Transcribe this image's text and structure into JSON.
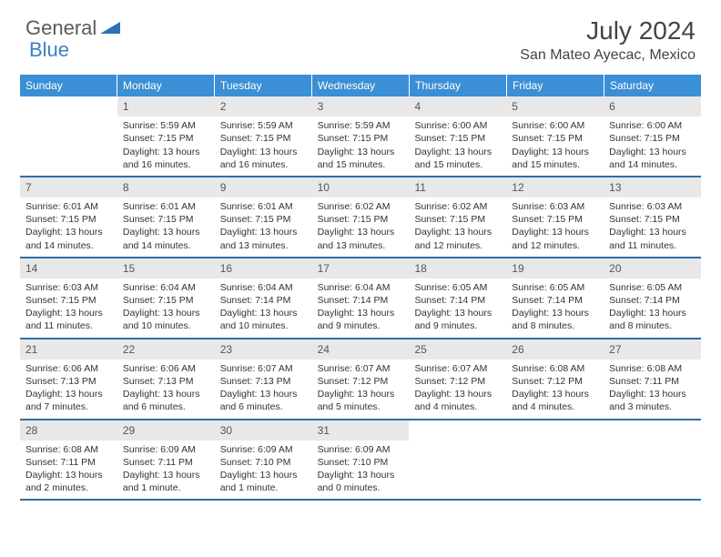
{
  "logo": {
    "text1": "General",
    "text2": "Blue"
  },
  "title": "July 2024",
  "location": "San Mateo Ayecac, Mexico",
  "colors": {
    "header_bg": "#3b8fd4",
    "header_text": "#ffffff",
    "row_border": "#2f6fa8",
    "daynum_bg": "#e8e8e8",
    "text": "#333333",
    "logo_gray": "#5a5a5a",
    "logo_blue": "#3b7fc4"
  },
  "day_headers": [
    "Sunday",
    "Monday",
    "Tuesday",
    "Wednesday",
    "Thursday",
    "Friday",
    "Saturday"
  ],
  "weeks": [
    [
      {
        "n": "",
        "sr": "",
        "ss": "",
        "dl": ""
      },
      {
        "n": "1",
        "sr": "5:59 AM",
        "ss": "7:15 PM",
        "dl": "13 hours and 16 minutes."
      },
      {
        "n": "2",
        "sr": "5:59 AM",
        "ss": "7:15 PM",
        "dl": "13 hours and 16 minutes."
      },
      {
        "n": "3",
        "sr": "5:59 AM",
        "ss": "7:15 PM",
        "dl": "13 hours and 15 minutes."
      },
      {
        "n": "4",
        "sr": "6:00 AM",
        "ss": "7:15 PM",
        "dl": "13 hours and 15 minutes."
      },
      {
        "n": "5",
        "sr": "6:00 AM",
        "ss": "7:15 PM",
        "dl": "13 hours and 15 minutes."
      },
      {
        "n": "6",
        "sr": "6:00 AM",
        "ss": "7:15 PM",
        "dl": "13 hours and 14 minutes."
      }
    ],
    [
      {
        "n": "7",
        "sr": "6:01 AM",
        "ss": "7:15 PM",
        "dl": "13 hours and 14 minutes."
      },
      {
        "n": "8",
        "sr": "6:01 AM",
        "ss": "7:15 PM",
        "dl": "13 hours and 14 minutes."
      },
      {
        "n": "9",
        "sr": "6:01 AM",
        "ss": "7:15 PM",
        "dl": "13 hours and 13 minutes."
      },
      {
        "n": "10",
        "sr": "6:02 AM",
        "ss": "7:15 PM",
        "dl": "13 hours and 13 minutes."
      },
      {
        "n": "11",
        "sr": "6:02 AM",
        "ss": "7:15 PM",
        "dl": "13 hours and 12 minutes."
      },
      {
        "n": "12",
        "sr": "6:03 AM",
        "ss": "7:15 PM",
        "dl": "13 hours and 12 minutes."
      },
      {
        "n": "13",
        "sr": "6:03 AM",
        "ss": "7:15 PM",
        "dl": "13 hours and 11 minutes."
      }
    ],
    [
      {
        "n": "14",
        "sr": "6:03 AM",
        "ss": "7:15 PM",
        "dl": "13 hours and 11 minutes."
      },
      {
        "n": "15",
        "sr": "6:04 AM",
        "ss": "7:15 PM",
        "dl": "13 hours and 10 minutes."
      },
      {
        "n": "16",
        "sr": "6:04 AM",
        "ss": "7:14 PM",
        "dl": "13 hours and 10 minutes."
      },
      {
        "n": "17",
        "sr": "6:04 AM",
        "ss": "7:14 PM",
        "dl": "13 hours and 9 minutes."
      },
      {
        "n": "18",
        "sr": "6:05 AM",
        "ss": "7:14 PM",
        "dl": "13 hours and 9 minutes."
      },
      {
        "n": "19",
        "sr": "6:05 AM",
        "ss": "7:14 PM",
        "dl": "13 hours and 8 minutes."
      },
      {
        "n": "20",
        "sr": "6:05 AM",
        "ss": "7:14 PM",
        "dl": "13 hours and 8 minutes."
      }
    ],
    [
      {
        "n": "21",
        "sr": "6:06 AM",
        "ss": "7:13 PM",
        "dl": "13 hours and 7 minutes."
      },
      {
        "n": "22",
        "sr": "6:06 AM",
        "ss": "7:13 PM",
        "dl": "13 hours and 6 minutes."
      },
      {
        "n": "23",
        "sr": "6:07 AM",
        "ss": "7:13 PM",
        "dl": "13 hours and 6 minutes."
      },
      {
        "n": "24",
        "sr": "6:07 AM",
        "ss": "7:12 PM",
        "dl": "13 hours and 5 minutes."
      },
      {
        "n": "25",
        "sr": "6:07 AM",
        "ss": "7:12 PM",
        "dl": "13 hours and 4 minutes."
      },
      {
        "n": "26",
        "sr": "6:08 AM",
        "ss": "7:12 PM",
        "dl": "13 hours and 4 minutes."
      },
      {
        "n": "27",
        "sr": "6:08 AM",
        "ss": "7:11 PM",
        "dl": "13 hours and 3 minutes."
      }
    ],
    [
      {
        "n": "28",
        "sr": "6:08 AM",
        "ss": "7:11 PM",
        "dl": "13 hours and 2 minutes."
      },
      {
        "n": "29",
        "sr": "6:09 AM",
        "ss": "7:11 PM",
        "dl": "13 hours and 1 minute."
      },
      {
        "n": "30",
        "sr": "6:09 AM",
        "ss": "7:10 PM",
        "dl": "13 hours and 1 minute."
      },
      {
        "n": "31",
        "sr": "6:09 AM",
        "ss": "7:10 PM",
        "dl": "13 hours and 0 minutes."
      },
      {
        "n": "",
        "sr": "",
        "ss": "",
        "dl": ""
      },
      {
        "n": "",
        "sr": "",
        "ss": "",
        "dl": ""
      },
      {
        "n": "",
        "sr": "",
        "ss": "",
        "dl": ""
      }
    ]
  ],
  "labels": {
    "sunrise": "Sunrise:",
    "sunset": "Sunset:",
    "daylight": "Daylight:"
  }
}
